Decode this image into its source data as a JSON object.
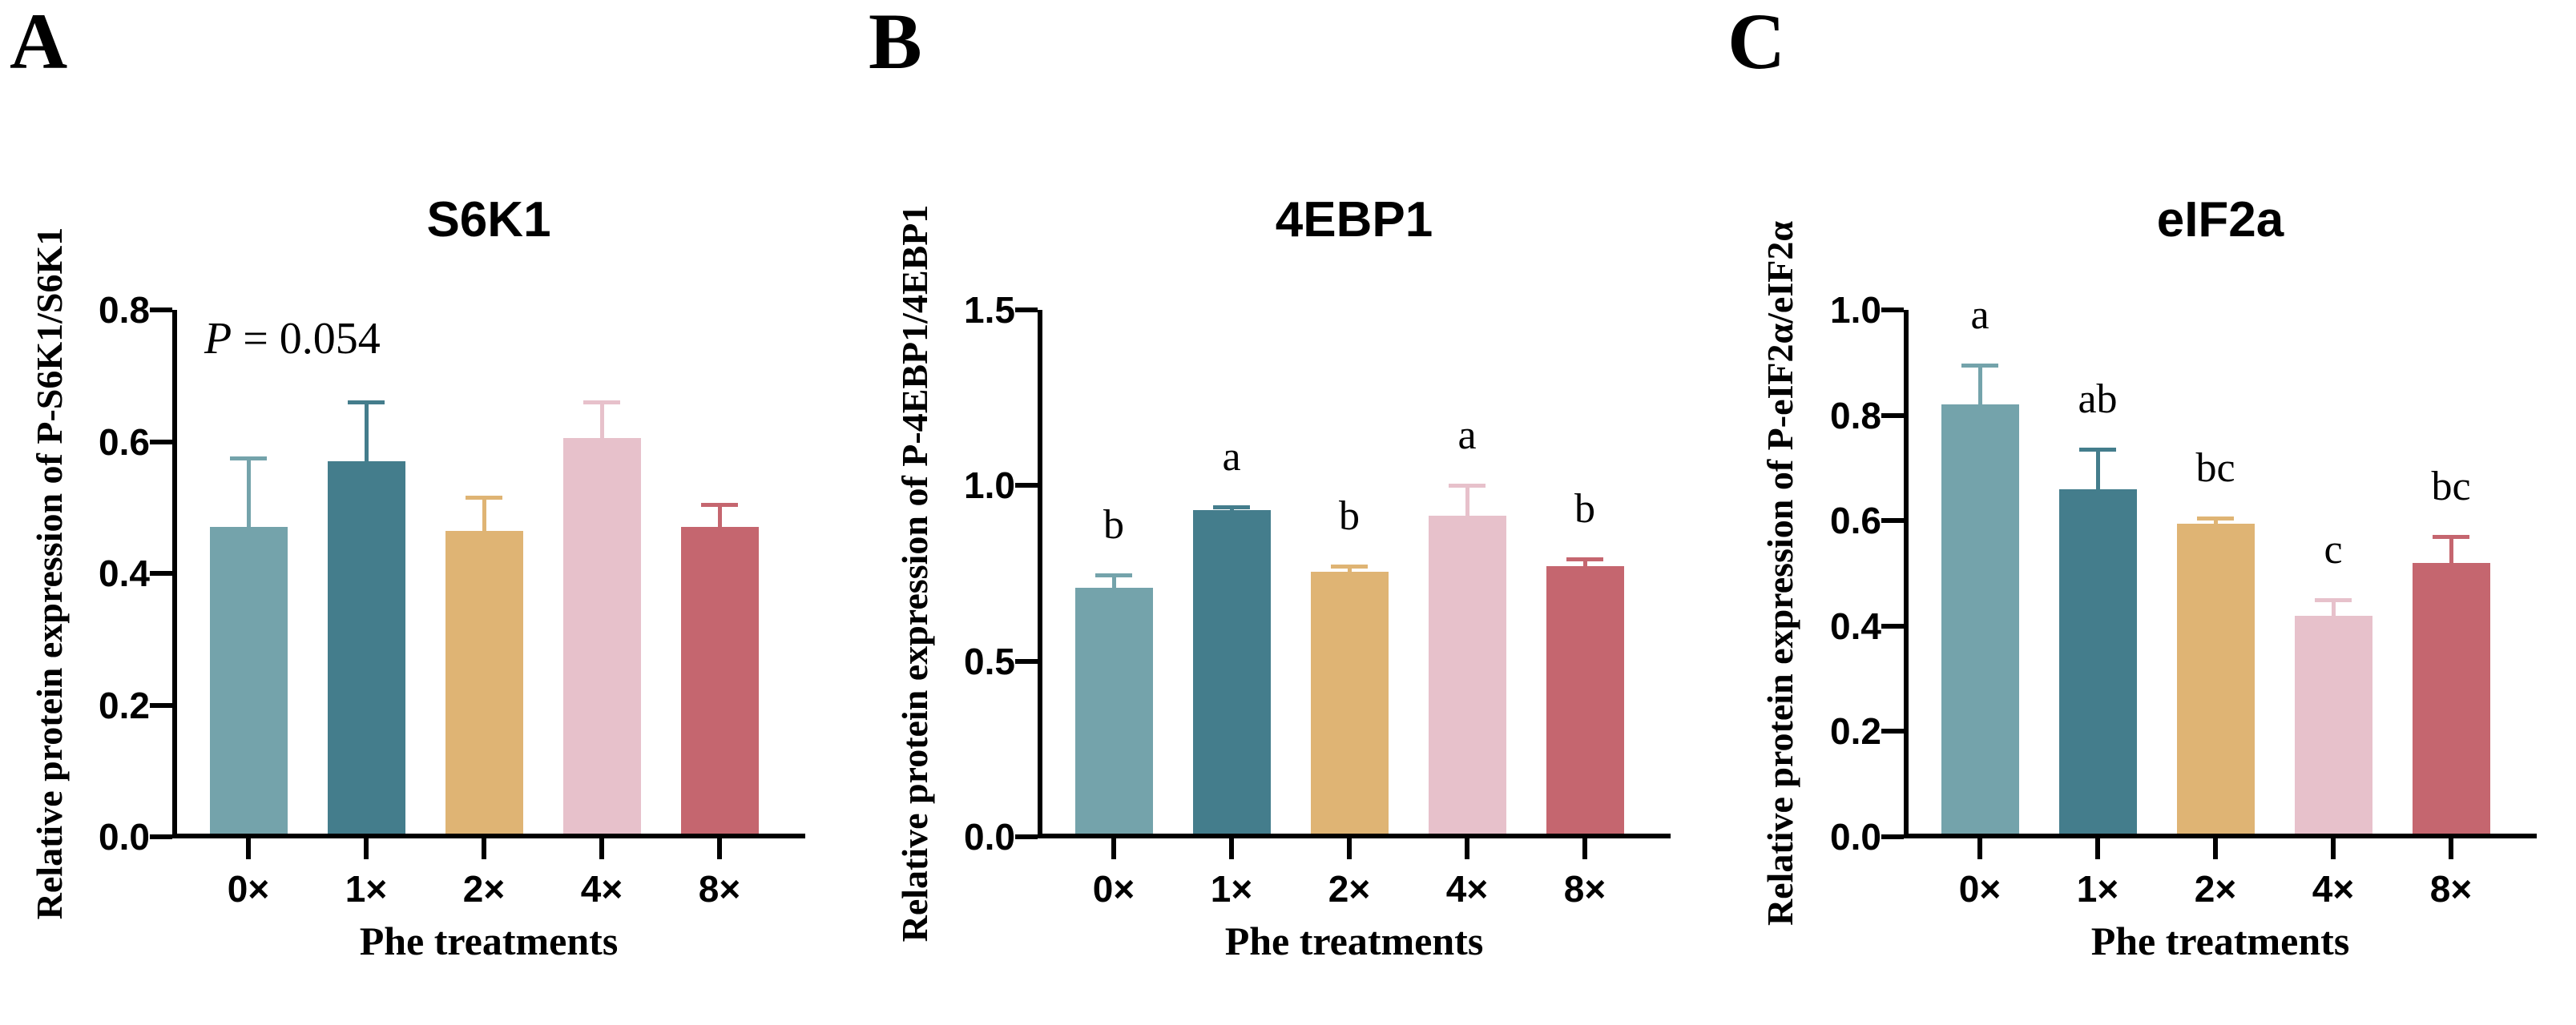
{
  "figure": {
    "panel_letters": [
      "A",
      "B",
      "C"
    ],
    "xlabel": "Phe treatments",
    "categories": [
      "0×",
      "1×",
      "2×",
      "4×",
      "8×"
    ],
    "bar_colors": [
      "#74A3AB",
      "#447D8C",
      "#DFB474",
      "#E7C1CB",
      "#C5666F"
    ],
    "axis_color": "#000000",
    "background_color": "#FFFFFF"
  },
  "chart_data": [
    {
      "type": "bar",
      "panel_letter": "A",
      "title": "S6K1",
      "ylabel": "Relative protein expression of P-S6K1/S6K1",
      "xlabel": "Phe treatments",
      "categories": [
        "0×",
        "1×",
        "2×",
        "4×",
        "8×"
      ],
      "values": [
        0.47,
        0.57,
        0.465,
        0.605,
        0.47
      ],
      "errors": [
        0.105,
        0.09,
        0.05,
        0.055,
        0.035
      ],
      "sig_letters": [
        "",
        "",
        "",
        "",
        ""
      ],
      "annotation_p": "P",
      "annotation_rest": " = 0.054",
      "annotation_text": "P = 0.054",
      "bar_colors": [
        "#74A3AB",
        "#447D8C",
        "#DFB474",
        "#E7C1CB",
        "#C5666F"
      ],
      "ylim": [
        0.0,
        0.8
      ],
      "ytick_values": [
        0.0,
        0.2,
        0.4,
        0.6,
        0.8
      ],
      "ytick_labels": [
        "0.0",
        "0.2",
        "0.4",
        "0.6",
        "0.8"
      ],
      "grid": false,
      "legend": "none"
    },
    {
      "type": "bar",
      "panel_letter": "B",
      "title": "4EBP1",
      "ylabel": "Relative protein expression of P-4EBP1/4EBP1",
      "xlabel": "Phe treatments",
      "categories": [
        "0×",
        "1×",
        "2×",
        "4×",
        "8×"
      ],
      "values": [
        0.71,
        0.93,
        0.755,
        0.915,
        0.77
      ],
      "errors": [
        0.035,
        0.01,
        0.015,
        0.085,
        0.02
      ],
      "sig_letters": [
        "b",
        "a",
        "b",
        "a",
        "b"
      ],
      "annotation_p": "",
      "annotation_rest": "",
      "annotation_text": "",
      "bar_colors": [
        "#74A3AB",
        "#447D8C",
        "#DFB474",
        "#E7C1CB",
        "#C5666F"
      ],
      "ylim": [
        0.0,
        1.5
      ],
      "ytick_values": [
        0.0,
        0.5,
        1.0,
        1.5
      ],
      "ytick_labels": [
        "0.0",
        "0.5",
        "1.0",
        "1.5"
      ],
      "grid": false,
      "legend": "none"
    },
    {
      "type": "bar",
      "panel_letter": "C",
      "title": "eIF2a",
      "ylabel": "Relative protein expression of P-eIF2α/eIF2α",
      "xlabel": "Phe treatments",
      "categories": [
        "0×",
        "1×",
        "2×",
        "4×",
        "8×"
      ],
      "values": [
        0.82,
        0.66,
        0.595,
        0.42,
        0.52
      ],
      "errors": [
        0.075,
        0.075,
        0.01,
        0.03,
        0.05
      ],
      "sig_letters": [
        "a",
        "ab",
        "bc",
        "c",
        "bc"
      ],
      "annotation_p": "",
      "annotation_rest": "",
      "annotation_text": "",
      "bar_colors": [
        "#74A3AB",
        "#447D8C",
        "#DFB474",
        "#E7C1CB",
        "#C5666F"
      ],
      "ylim": [
        0.0,
        1.0
      ],
      "ytick_values": [
        0.0,
        0.2,
        0.4,
        0.6,
        0.8,
        1.0
      ],
      "ytick_labels": [
        "0.0",
        "0.2",
        "0.4",
        "0.6",
        "0.8",
        "1.0"
      ],
      "grid": false,
      "legend": "none"
    }
  ]
}
